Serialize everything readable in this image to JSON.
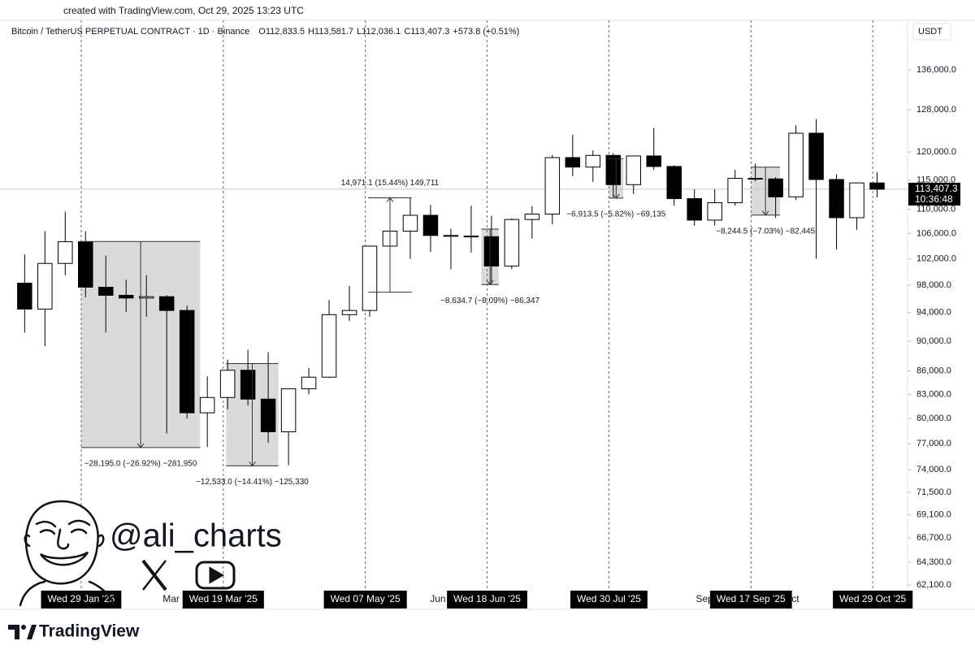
{
  "header": {
    "created_with": "created with TradingView.com, Oct 29, 2025 13:23 UTC"
  },
  "chart_data": {
    "type": "candlestick",
    "title": "Bitcoin / TetherUS PERPETUAL CONTRACT · 1D · Binance",
    "ohlc_legend": [
      "O112,833.5",
      "H113,581.7",
      "L112,036.1",
      "C113,407.3",
      "+573.8 (+0.51%)"
    ],
    "currency": "USDT",
    "log_scale": true,
    "xlim": [
      "2025-01-01",
      "2025-11-10"
    ],
    "ylim": [
      59840,
      146650
    ],
    "yticks": [
      {
        "value": 136000,
        "label": "136,000.0"
      },
      {
        "value": 128000,
        "label": "128,000.0"
      },
      {
        "value": 120000,
        "label": "120,000.0"
      },
      {
        "value": 115000,
        "label": "115,000.0"
      },
      {
        "value": 110000,
        "label": "110,000.0"
      },
      {
        "value": 106000,
        "label": "106,000.0"
      },
      {
        "value": 102000,
        "label": "102,000.0"
      },
      {
        "value": 98000,
        "label": "98,000.0"
      },
      {
        "value": 94000,
        "label": "94,000.0"
      },
      {
        "value": 90000,
        "label": "90,000.0"
      },
      {
        "value": 86000,
        "label": "86,000.0"
      },
      {
        "value": 83000,
        "label": "83,000.0"
      },
      {
        "value": 80000,
        "label": "80,000.0"
      },
      {
        "value": 77000,
        "label": "77,000.0"
      },
      {
        "value": 74000,
        "label": "74,000.0"
      },
      {
        "value": 71500,
        "label": "71,500.0"
      },
      {
        "value": 69100,
        "label": "69,100.0"
      },
      {
        "value": 66700,
        "label": "66,700.0"
      },
      {
        "value": 64300,
        "label": "64,300.0"
      },
      {
        "value": 62100,
        "label": "62,100.0"
      }
    ],
    "xticks": [
      {
        "value": "2025-03-01",
        "label": "Mar"
      },
      {
        "value": "2025-06-01",
        "label": "Jun"
      },
      {
        "value": "2025-09-01",
        "label": "Sep"
      },
      {
        "value": "2025-10-01",
        "label": "Oct"
      }
    ],
    "markers": [
      {
        "value": "2025-01-29",
        "label": "Wed 29 Jan '25"
      },
      {
        "value": "2025-03-19",
        "label": "Wed 19 Mar '25"
      },
      {
        "value": "2025-05-07",
        "label": "Wed 07 May '25"
      },
      {
        "value": "2025-06-18",
        "label": "Wed 18 Jun '25"
      },
      {
        "value": "2025-07-30",
        "label": "Wed 30 Jul '25"
      },
      {
        "value": "2025-09-17",
        "label": "Wed 17 Sep '25"
      },
      {
        "value": "2025-10-29",
        "label": "Wed 29 Oct '25"
      }
    ],
    "last_price": {
      "value": 113407.3,
      "label": "113,407.3"
    },
    "countdown": "10:36:48",
    "up_color": "#ffffff",
    "down_color": "#000000",
    "x": [
      "2025-01-06",
      "2025-01-13",
      "2025-01-20",
      "2025-01-27",
      "2025-02-03",
      "2025-02-10",
      "2025-02-17",
      "2025-02-24",
      "2025-03-03",
      "2025-03-10",
      "2025-03-17",
      "2025-03-24",
      "2025-03-31",
      "2025-04-07",
      "2025-04-14",
      "2025-04-21",
      "2025-04-28",
      "2025-05-05",
      "2025-05-12",
      "2025-05-19",
      "2025-05-26",
      "2025-06-02",
      "2025-06-09",
      "2025-06-16",
      "2025-06-23",
      "2025-06-30",
      "2025-07-07",
      "2025-07-14",
      "2025-07-21",
      "2025-07-28",
      "2025-08-04",
      "2025-08-11",
      "2025-08-18",
      "2025-08-25",
      "2025-09-01",
      "2025-09-08",
      "2025-09-15",
      "2025-09-22",
      "2025-09-29",
      "2025-10-06",
      "2025-10-13",
      "2025-10-20",
      "2025-10-27"
    ],
    "open": [
      98300,
      94500,
      101300,
      104700,
      97700,
      96500,
      96100,
      96300,
      94300,
      80700,
      82600,
      86100,
      82400,
      78400,
      83700,
      85200,
      93700,
      94300,
      104000,
      106400,
      109000,
      105700,
      105600,
      105500,
      100900,
      108300,
      109200,
      119000,
      117300,
      119400,
      114200,
      119300,
      117400,
      111800,
      108200,
      111100,
      115300,
      115200,
      112100,
      123500,
      115100,
      108600,
      114500
    ],
    "high": [
      102700,
      106400,
      109600,
      106400,
      102500,
      98800,
      99500,
      96500,
      95000,
      85300,
      87500,
      88800,
      88500,
      83600,
      86400,
      95800,
      97900,
      104100,
      106600,
      112000,
      110700,
      106800,
      110600,
      108900,
      108500,
      110500,
      119500,
      123200,
      120300,
      119800,
      119300,
      124500,
      117600,
      113400,
      113400,
      116800,
      117900,
      115500,
      125000,
      126200,
      116000,
      114600,
      116400
    ],
    "low": [
      91200,
      89300,
      99500,
      96200,
      91200,
      94100,
      93400,
      78200,
      80000,
      76600,
      81100,
      81600,
      77100,
      74500,
      83000,
      85100,
      92800,
      93400,
      100700,
      102000,
      103100,
      100400,
      103000,
      98200,
      100400,
      105200,
      107500,
      115700,
      114700,
      112000,
      112600,
      116800,
      110600,
      107300,
      107300,
      110600,
      114800,
      108600,
      111600,
      102000,
      103500,
      106600,
      112000
    ],
    "close": [
      94500,
      101300,
      104700,
      97700,
      96500,
      96100,
      96300,
      94300,
      80700,
      82600,
      86100,
      82400,
      78400,
      83700,
      85200,
      93700,
      94300,
      104000,
      106400,
      109000,
      105700,
      105600,
      105500,
      100900,
      108300,
      109200,
      119000,
      117300,
      119400,
      114200,
      119300,
      117400,
      111800,
      108200,
      111100,
      115300,
      115200,
      112100,
      123500,
      115100,
      108600,
      114500,
      113407.3
    ],
    "measurements": [
      {
        "start": "2025-01-29",
        "end": "2025-03-11",
        "from": 104736,
        "to": 76541,
        "label": "−28,195.0 (−26.92%) −281,950"
      },
      {
        "start": "2025-03-20",
        "end": "2025-04-07",
        "from": 86975,
        "to": 74442,
        "label": "−12,533.0 (−14.41%) −125,330"
      },
      {
        "start": "2025-05-08",
        "end": "2025-05-23",
        "from": 96960,
        "to": 111931,
        "label": "14,971.1 (15.44%) 149,711"
      },
      {
        "start": "2025-06-16",
        "end": "2025-06-22",
        "from": 106733,
        "to": 98098,
        "label": "−8,634.7 (−8.09%) −86,347"
      },
      {
        "start": "2025-07-30",
        "end": "2025-08-04",
        "from": 118788,
        "to": 111875,
        "label": "−6,913.5 (−5.82%) −69,135"
      },
      {
        "start": "2025-09-17",
        "end": "2025-09-27",
        "from": 117276,
        "to": 109031,
        "label": "−8,244.5 (−7.03%) −82,445"
      }
    ]
  },
  "watermark": {
    "handle": "@ali_charts"
  },
  "footer": {
    "brand": "TradingView"
  }
}
